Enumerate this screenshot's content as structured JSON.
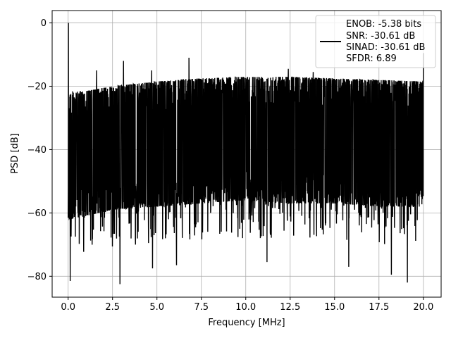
{
  "chart_data": {
    "type": "line",
    "title": "",
    "xlabel": "Frequency [MHz]",
    "ylabel": "PSD [dB]",
    "xlim": [
      -0.9,
      21.0
    ],
    "ylim": [
      -86.6,
      3.9
    ],
    "grid": true,
    "legend_position": "top-right",
    "x_ticks": [
      0.0,
      2.5,
      5.0,
      7.5,
      10.0,
      12.5,
      15.0,
      17.5,
      20.0
    ],
    "x_tick_labels": [
      "0.0",
      "2.5",
      "5.0",
      "7.5",
      "10.0",
      "12.5",
      "15.0",
      "17.5",
      "20.0"
    ],
    "y_ticks": [
      0,
      -20,
      -40,
      -60,
      -80
    ],
    "y_tick_labels": [
      "0",
      "−20",
      "−40",
      "−60",
      "−80"
    ],
    "series": [
      {
        "name": "ENOB: -5.38 bits\nSNR: -30.61 dB\nSINAD: -30.61 dB\nSFDR: 6.89",
        "color": "#000000",
        "x_range": [
          0.0,
          20.0
        ],
        "upper_envelope_db": [
          [
            0.0,
            -22
          ],
          [
            1.0,
            -21.5
          ],
          [
            2.5,
            -20
          ],
          [
            5.0,
            -18.5
          ],
          [
            7.5,
            -17.5
          ],
          [
            10.0,
            -17
          ],
          [
            12.5,
            -17
          ],
          [
            15.0,
            -17.5
          ],
          [
            17.5,
            -18
          ],
          [
            20.0,
            -18.5
          ]
        ],
        "lower_envelope_db": [
          [
            0.0,
            -62
          ],
          [
            1.0,
            -61
          ],
          [
            2.5,
            -59
          ],
          [
            5.0,
            -58
          ],
          [
            7.5,
            -57
          ],
          [
            10.0,
            -56
          ],
          [
            12.5,
            -57
          ],
          [
            15.0,
            -57
          ],
          [
            17.5,
            -58
          ],
          [
            20.0,
            -58
          ]
        ],
        "peaks": [
          {
            "x": 0.02,
            "y": 0.0
          },
          {
            "x": 1.6,
            "y": -15.0
          },
          {
            "x": 3.12,
            "y": -12.0
          },
          {
            "x": 4.7,
            "y": -15.0
          },
          {
            "x": 6.8,
            "y": -11.0
          },
          {
            "x": 12.4,
            "y": -14.5
          },
          {
            "x": 13.8,
            "y": -15.5
          },
          {
            "x": 20.0,
            "y": -9.5
          }
        ],
        "troughs": [
          {
            "x": 0.12,
            "y": -81.5
          },
          {
            "x": 2.92,
            "y": -82.5
          },
          {
            "x": 4.75,
            "y": -77.5
          },
          {
            "x": 6.1,
            "y": -76.5
          },
          {
            "x": 11.2,
            "y": -75.5
          },
          {
            "x": 15.8,
            "y": -77.0
          },
          {
            "x": 18.2,
            "y": -79.5
          },
          {
            "x": 19.1,
            "y": -82.0
          }
        ]
      }
    ]
  },
  "legend": {
    "lines": [
      "ENOB: -5.38 bits",
      "SNR: -30.61 dB",
      "SINAD: -30.61 dB",
      "SFDR: 6.89"
    ]
  }
}
